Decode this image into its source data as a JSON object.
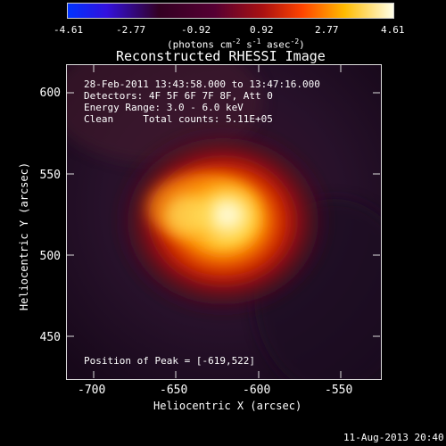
{
  "colorbar": {
    "ticks": [
      "-4.61",
      "-2.77",
      "-0.92",
      "0.92",
      "2.77",
      "4.61"
    ],
    "units_main": "(photons cm",
    "units_sup1": "-2",
    "units_mid1": " s",
    "units_sup2": "-1",
    "units_mid2": " asec",
    "units_sup3": "-2",
    "units_end": ")"
  },
  "title": "Reconstructed RHESSI Image",
  "info": {
    "line1": "28-Feb-2011 13:43:58.000 to 13:47:16.000",
    "line2": "Detectors: 4F 5F 6F 7F 8F, Att 0",
    "line3": "Energy Range: 3.0 - 6.0 keV",
    "line4": "Clean     Total counts: 5.11E+05"
  },
  "peak_text": "Position of Peak = [-619,522]",
  "x_axis": {
    "label": "Heliocentric X (arcsec)",
    "ticks": [
      "-700",
      "-650",
      "-600",
      "-550"
    ]
  },
  "y_axis": {
    "label": "Heliocentric Y (arcsec)",
    "ticks": [
      "600",
      "550",
      "500",
      "450"
    ]
  },
  "footer": "11-Aug-2013 20:40"
}
